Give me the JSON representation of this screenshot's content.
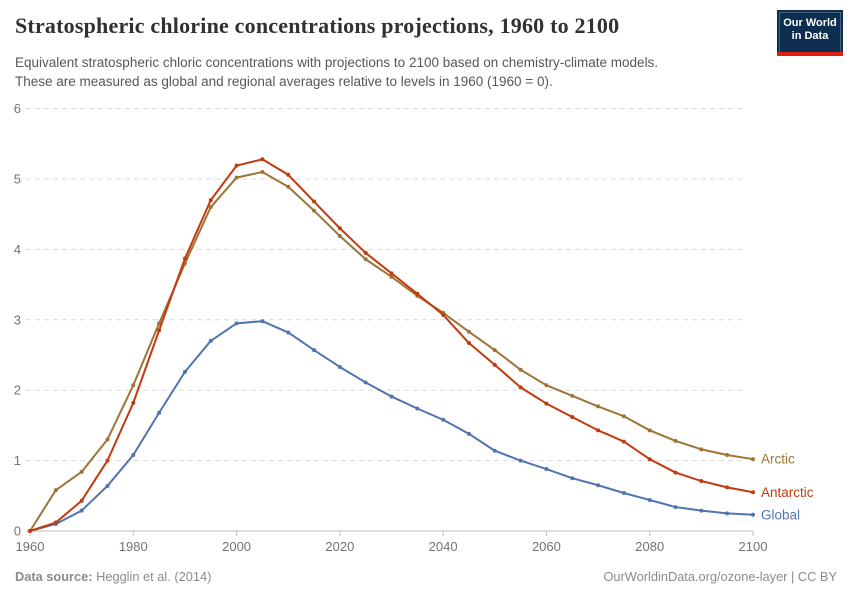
{
  "header": {
    "title": "Stratospheric chlorine concentrations projections, 1960 to 2100",
    "subtitle_lines": [
      "Equivalent stratospheric chloric concentrations with projections to 2100 based on chemistry-climate models.",
      "These are measured as global and regional averages relative to levels in 1960 (1960 = 0)."
    ],
    "logo": {
      "line1": "Our World",
      "line2": "in Data",
      "bg_color": "#0d2e4e",
      "bar_color": "#e02011"
    }
  },
  "footer": {
    "source_label": "Data source:",
    "source_value": "Hegglin et al. (2014)",
    "site": "OurWorldinData.org/ozone-layer | CC BY"
  },
  "chart_data": {
    "type": "line",
    "title": "Stratospheric chlorine concentrations projections, 1960 to 2100",
    "xlabel": "",
    "ylabel": "",
    "xlim": [
      1960,
      2100
    ],
    "ylim": [
      0,
      6
    ],
    "xticks": [
      1960,
      1980,
      2000,
      2020,
      2040,
      2060,
      2080,
      2100
    ],
    "yticks": [
      0,
      1,
      2,
      3,
      4,
      5,
      6
    ],
    "grid": "horizontal-dashed",
    "legend_position": "right-end-labels",
    "x": [
      1960,
      1965,
      1970,
      1975,
      1980,
      1985,
      1990,
      1995,
      2000,
      2005,
      2010,
      2015,
      2020,
      2025,
      2030,
      2035,
      2040,
      2045,
      2050,
      2055,
      2060,
      2065,
      2070,
      2075,
      2080,
      2085,
      2090,
      2095,
      2100
    ],
    "series": [
      {
        "name": "Arctic",
        "color": "#9e7437",
        "values": [
          0,
          0.58,
          0.84,
          1.3,
          2.07,
          2.95,
          3.8,
          4.6,
          5.02,
          5.1,
          4.89,
          4.55,
          4.19,
          3.86,
          3.61,
          3.34,
          3.1,
          2.83,
          2.57,
          2.29,
          2.07,
          1.92,
          1.77,
          1.63,
          1.43,
          1.28,
          1.16,
          1.08,
          1.02
        ]
      },
      {
        "name": "Antarctic",
        "color": "#c23a0e",
        "values": [
          0,
          0.12,
          0.43,
          1.0,
          1.82,
          2.85,
          3.87,
          4.7,
          5.19,
          5.28,
          5.06,
          4.68,
          4.3,
          3.95,
          3.66,
          3.37,
          3.07,
          2.67,
          2.36,
          2.04,
          1.81,
          1.62,
          1.43,
          1.27,
          1.02,
          0.83,
          0.71,
          0.62,
          0.55
        ]
      },
      {
        "name": "Global",
        "color": "#4f74b0",
        "values": [
          0,
          0.1,
          0.29,
          0.64,
          1.08,
          1.68,
          2.26,
          2.7,
          2.95,
          2.98,
          2.82,
          2.57,
          2.33,
          2.11,
          1.91,
          1.74,
          1.58,
          1.38,
          1.14,
          1.0,
          0.88,
          0.75,
          0.65,
          0.54,
          0.44,
          0.34,
          0.29,
          0.25,
          0.23
        ]
      }
    ]
  }
}
